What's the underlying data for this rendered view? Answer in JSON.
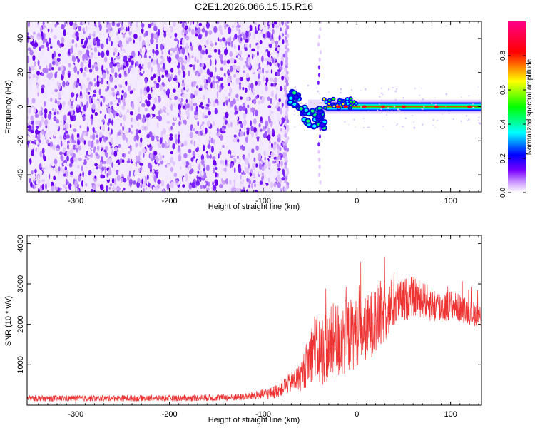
{
  "title": "C2E1.2026.066.15.15.R16",
  "chart_data": [
    {
      "type": "heatmap",
      "name": "spectrogram",
      "xlabel": "Height of straight line (km)",
      "ylabel": "Frequency (Hz)",
      "xlim": [
        -352,
        133
      ],
      "ylim": [
        -50,
        50
      ],
      "xticks": [
        -300,
        -200,
        -100,
        0,
        100
      ],
      "yticks": [
        -40,
        -20,
        0,
        20,
        40
      ],
      "noise_region_x": [
        -352,
        -75
      ],
      "signal_onset_x": -75,
      "carrier_frequency_hz": 0,
      "colorbar": {
        "label": "Normalized spectral amplitude",
        "range": [
          0,
          1
        ],
        "ticks": [
          0.0,
          0.2,
          0.4,
          0.6,
          0.8
        ],
        "tick_labels": [
          "0.0",
          "0.2",
          "0.4",
          "0.6",
          "0.8"
        ],
        "colors": [
          "#ffffff",
          "#cc99ff",
          "#7700ff",
          "#0000ff",
          "#00ffff",
          "#00ff00",
          "#ffff00",
          "#ff0000",
          "#ff0088"
        ]
      }
    },
    {
      "type": "line",
      "name": "snr",
      "xlabel": "Height of straight line (km)",
      "ylabel": "SNR (10 * v/v)",
      "xlim": [
        -352,
        133
      ],
      "ylim": [
        0,
        4200
      ],
      "xticks": [
        -300,
        -200,
        -100,
        0,
        100
      ],
      "yticks": [
        1000,
        2000,
        3000,
        4000
      ],
      "color": "#ee3333",
      "envelope": {
        "x": [
          -352,
          -200,
          -120,
          -90,
          -75,
          -60,
          -50,
          -45,
          -40,
          -30,
          -20,
          -10,
          0,
          10,
          25,
          30,
          40,
          50,
          60,
          70,
          80,
          90,
          100,
          110,
          120,
          133
        ],
        "mean": [
          170,
          170,
          200,
          300,
          500,
          700,
          1200,
          1500,
          1300,
          1500,
          1600,
          1700,
          1800,
          1900,
          2200,
          2300,
          2500,
          2600,
          2700,
          2600,
          2500,
          2400,
          2500,
          2400,
          2300,
          2200
        ],
        "spread": [
          150,
          150,
          180,
          300,
          450,
          700,
          1400,
          1600,
          1800,
          1900,
          2000,
          1900,
          1700,
          1600,
          1800,
          1500,
          1200,
          1100,
          1000,
          900,
          900,
          850,
          700,
          700,
          600,
          600
        ]
      }
    }
  ]
}
